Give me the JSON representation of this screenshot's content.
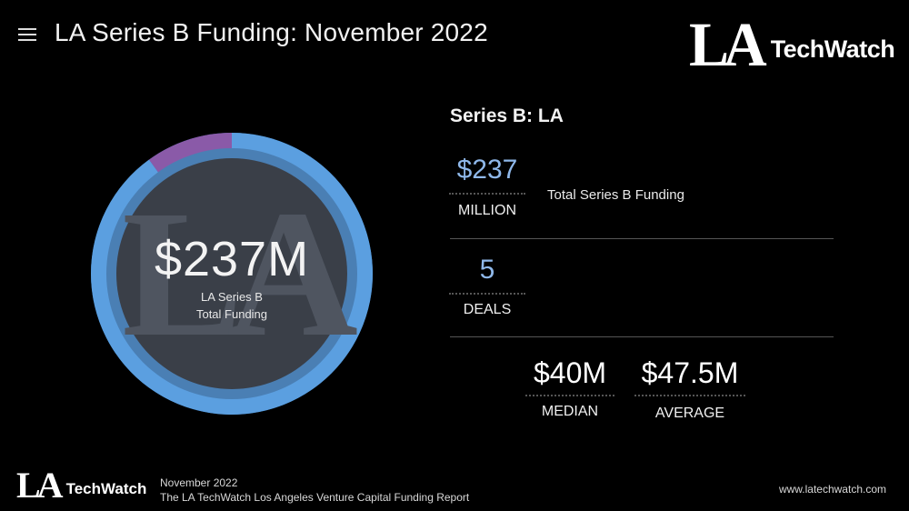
{
  "header": {
    "menu_icon": "hamburger-menu-icon",
    "title": "LA Series B Funding: November 2022"
  },
  "logo": {
    "la": "LA",
    "techwatch": "TechWatch"
  },
  "donut": {
    "value": "$237M",
    "label_line1": "LA Series B",
    "label_line2": "Total Funding",
    "watermark": "LA",
    "segments": [
      {
        "share": 0.1,
        "color": "#8a5aa8"
      },
      {
        "share": 0.9,
        "color": "#5b9fe0"
      }
    ]
  },
  "panel": {
    "title": "Series B: LA",
    "total": {
      "value": "$237",
      "unit": "MILLION",
      "description": "Total Series B Funding"
    },
    "deals": {
      "value": "5",
      "unit": "DEALS"
    },
    "median": {
      "value": "$40M",
      "label": "MEDIAN"
    },
    "average": {
      "value": "$47.5M",
      "label": "AVERAGE"
    }
  },
  "footer": {
    "date": "November 2022",
    "report": "The LA TechWatch Los Angeles Venture Capital Funding Report",
    "website": "www.latechwatch.com"
  },
  "colors": {
    "accent_blue": "#5b9fe0",
    "accent_purple": "#8a5aa8",
    "value_blue": "#8fb8ea",
    "background": "#000000"
  }
}
